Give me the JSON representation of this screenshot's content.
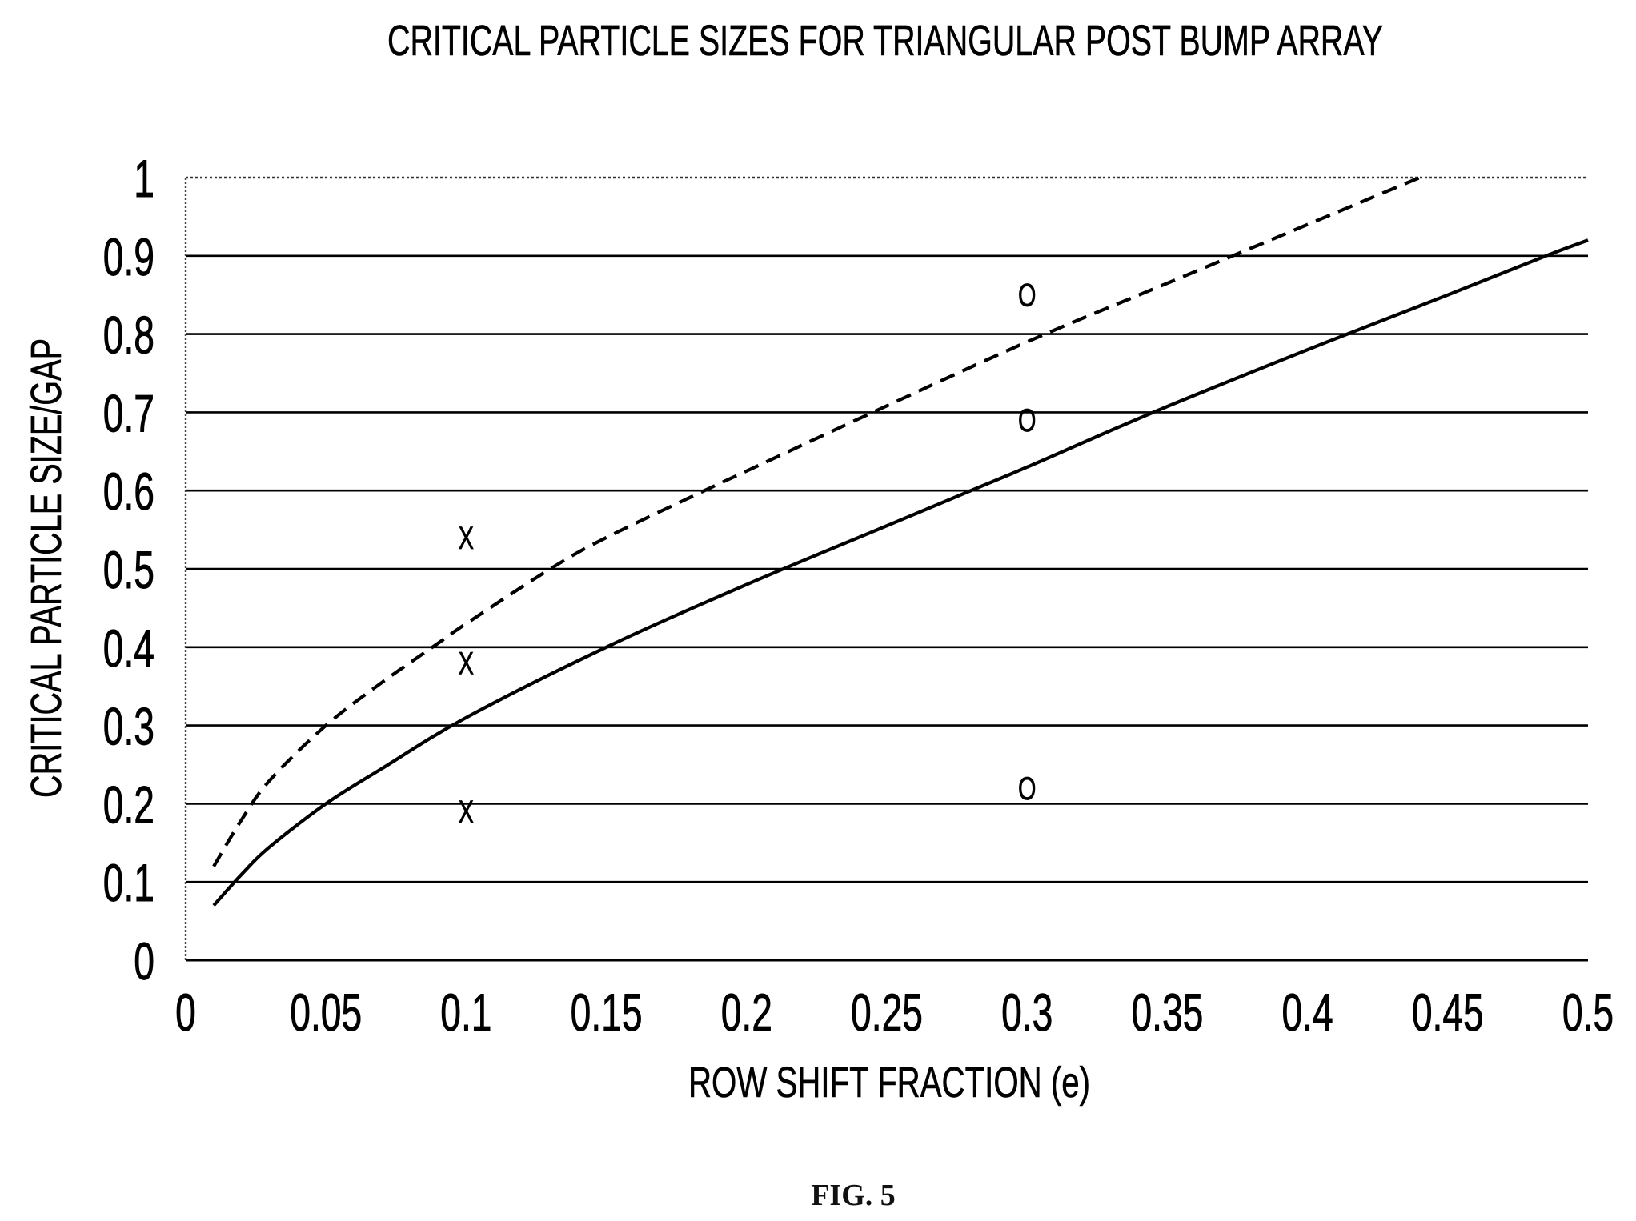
{
  "figure": {
    "label": "FIG. 5"
  },
  "chart_data": {
    "type": "line",
    "title": "CRITICAL PARTICLE SIZES FOR TRIANGULAR POST BUMP ARRAY",
    "xlabel": "ROW SHIFT FRACTION (e)",
    "ylabel": "CRITICAL PARTICLE SIZE/GAP",
    "xlim": [
      0,
      0.5
    ],
    "ylim": [
      0,
      1
    ],
    "xticks": [
      0,
      0.05,
      0.1,
      0.15,
      0.2,
      0.25,
      0.3,
      0.35,
      0.4,
      0.45,
      0.5
    ],
    "xtick_labels": [
      "0",
      "0.05",
      "0.1",
      "0.15",
      "0.2",
      "0.25",
      "0.3",
      "0.35",
      "0.4",
      "0.45",
      "0.5"
    ],
    "yticks": [
      0,
      0.1,
      0.2,
      0.3,
      0.4,
      0.5,
      0.6,
      0.7,
      0.8,
      0.9,
      1
    ],
    "ytick_labels": [
      "0",
      "0.1",
      "0.2",
      "0.3",
      "0.4",
      "0.5",
      "0.6",
      "0.7",
      "0.8",
      "0.9",
      "1"
    ],
    "grid": "horizontal",
    "legend": "none",
    "line_color": "#000000",
    "series": [
      {
        "line_style": "solid",
        "x": [
          0.01,
          0.02,
          0.03,
          0.05,
          0.07,
          0.1,
          0.15,
          0.2,
          0.25,
          0.28,
          0.3,
          0.345,
          0.4,
          0.45,
          0.485,
          0.5
        ],
        "y": [
          0.07,
          0.11,
          0.145,
          0.2,
          0.245,
          0.31,
          0.4,
          0.48,
          0.555,
          0.6,
          0.63,
          0.7,
          0.78,
          0.85,
          0.9,
          0.92
        ]
      },
      {
        "line_style": "dashed",
        "x": [
          0.01,
          0.02,
          0.03,
          0.05,
          0.07,
          0.09,
          0.1,
          0.13,
          0.15,
          0.185,
          0.2,
          0.245,
          0.3,
          0.35,
          0.4,
          0.44
        ],
        "y": [
          0.12,
          0.18,
          0.23,
          0.3,
          0.355,
          0.405,
          0.43,
          0.5,
          0.54,
          0.6,
          0.625,
          0.7,
          0.79,
          0.865,
          0.94,
          1.0
        ]
      }
    ],
    "points": [
      {
        "marker": "X",
        "x": 0.1,
        "y": 0.54
      },
      {
        "marker": "X",
        "x": 0.1,
        "y": 0.38
      },
      {
        "marker": "X",
        "x": 0.1,
        "y": 0.19
      },
      {
        "marker": "O",
        "x": 0.3,
        "y": 0.85
      },
      {
        "marker": "O",
        "x": 0.3,
        "y": 0.69
      },
      {
        "marker": "O",
        "x": 0.3,
        "y": 0.22
      }
    ]
  }
}
